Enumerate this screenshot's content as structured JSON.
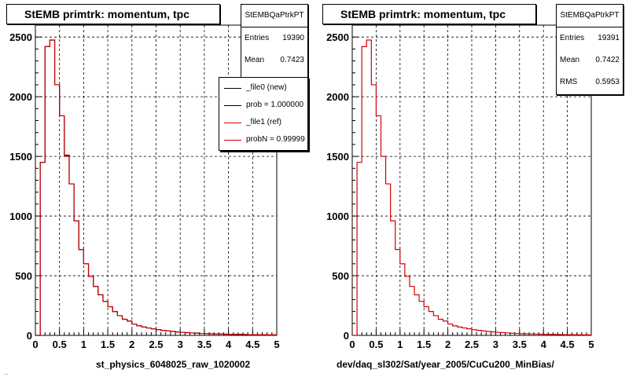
{
  "footer": "...",
  "chart_data": [
    {
      "type": "bar",
      "title": "StEMB primtrk: momentum, tpc",
      "xlabel": "st_physics_6048025_raw_1020002",
      "xlim": [
        0,
        5
      ],
      "ylim": [
        0,
        2600
      ],
      "xticks": [
        "0",
        "0.5",
        "1",
        "1.5",
        "2",
        "2.5",
        "3",
        "3.5",
        "4",
        "4.5",
        "5"
      ],
      "yticks": [
        "0",
        "500",
        "1000",
        "1500",
        "2000",
        "2500"
      ],
      "grid": true,
      "stats": {
        "name": "StEMBQaPtrkPT",
        "entries_label": "Entries",
        "entries": "19390",
        "mean_label": "Mean",
        "mean": "0.7423"
      },
      "legend": [
        {
          "label": "_file0 (new)",
          "color": "#000000"
        },
        {
          "label": "prob = 1.000000",
          "color": "#000000"
        },
        {
          "label": "_file1 (ref)",
          "color": "#d00000"
        },
        {
          "label": "probN = 0.99999",
          "color": "#d00000"
        }
      ],
      "bin_width": 0.1,
      "series": [
        {
          "name": "_file0 (new)",
          "color": "#000000",
          "values": [
            0,
            1450,
            2420,
            2475,
            2100,
            1840,
            1510,
            1270,
            960,
            720,
            600,
            495,
            410,
            340,
            285,
            240,
            200,
            165,
            135,
            120,
            95,
            80,
            70,
            62,
            55,
            48,
            42,
            37,
            33,
            29,
            26,
            23,
            20,
            18,
            16,
            14,
            13,
            12,
            11,
            10,
            9,
            8,
            8,
            7,
            6,
            6,
            5,
            5,
            4,
            4
          ]
        },
        {
          "name": "_file1 (ref)",
          "color": "#d00000",
          "values": [
            0,
            1450,
            2420,
            2475,
            2100,
            1840,
            1500,
            1270,
            960,
            720,
            600,
            495,
            410,
            340,
            285,
            240,
            200,
            165,
            135,
            120,
            95,
            80,
            70,
            62,
            55,
            48,
            42,
            37,
            33,
            29,
            26,
            23,
            20,
            18,
            16,
            14,
            13,
            12,
            11,
            10,
            9,
            8,
            8,
            7,
            6,
            6,
            5,
            5,
            4,
            4
          ]
        }
      ]
    },
    {
      "type": "bar",
      "title": "StEMB primtrk: momentum, tpc",
      "xlabel": "dev/daq_sl302/Sat/year_2005/CuCu200_MinBias/",
      "xlim": [
        0,
        5
      ],
      "ylim": [
        0,
        2600
      ],
      "xticks": [
        "0",
        "0.5",
        "1",
        "1.5",
        "2",
        "2.5",
        "3",
        "3.5",
        "4",
        "4.5",
        "5"
      ],
      "yticks": [
        "0",
        "500",
        "1000",
        "1500",
        "2000",
        "2500"
      ],
      "grid": true,
      "stats": {
        "name": "StEMBQaPtrkPT",
        "entries_label": "Entries",
        "entries": "19391",
        "mean_label": "Mean",
        "mean": "0.7422",
        "rms_label": "RMS",
        "rms": "0.5953"
      },
      "bin_width": 0.1,
      "series": [
        {
          "name": "",
          "color": "#d00000",
          "values": [
            0,
            1450,
            2420,
            2475,
            2100,
            1840,
            1500,
            1270,
            960,
            720,
            600,
            495,
            410,
            340,
            285,
            240,
            200,
            165,
            135,
            120,
            95,
            80,
            70,
            62,
            55,
            48,
            42,
            37,
            33,
            29,
            26,
            23,
            20,
            18,
            16,
            14,
            13,
            12,
            11,
            10,
            9,
            8,
            8,
            7,
            6,
            6,
            5,
            5,
            4,
            4
          ]
        }
      ]
    }
  ]
}
